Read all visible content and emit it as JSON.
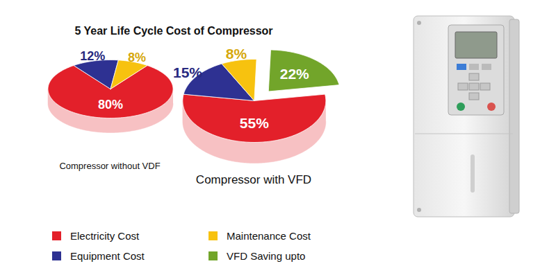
{
  "title": "5 Year Life Cycle Cost of Compressor",
  "chart_data": [
    {
      "type": "pie",
      "title": "Compressor without VDF",
      "categories": [
        "Electricity Cost",
        "Equipment Cost",
        "Maintenance Cost"
      ],
      "values": [
        80,
        12,
        8
      ],
      "value_labels": [
        "80%",
        "12%",
        "8%"
      ],
      "colors": [
        "#e3202a",
        "#2e3192",
        "#f7c20f"
      ],
      "data_labels": true
    },
    {
      "type": "pie",
      "title": "Compressor with VFD",
      "categories": [
        "Electricity Cost",
        "Equipment Cost",
        "Maintenance Cost",
        "VFD Saving upto"
      ],
      "values": [
        55,
        15,
        8,
        22
      ],
      "value_labels": [
        "55%",
        "15%",
        "8%",
        "22%"
      ],
      "colors": [
        "#e3202a",
        "#2e3192",
        "#f7c20f",
        "#72a52a"
      ],
      "data_labels": true,
      "legend": "bottom"
    }
  ]
}
